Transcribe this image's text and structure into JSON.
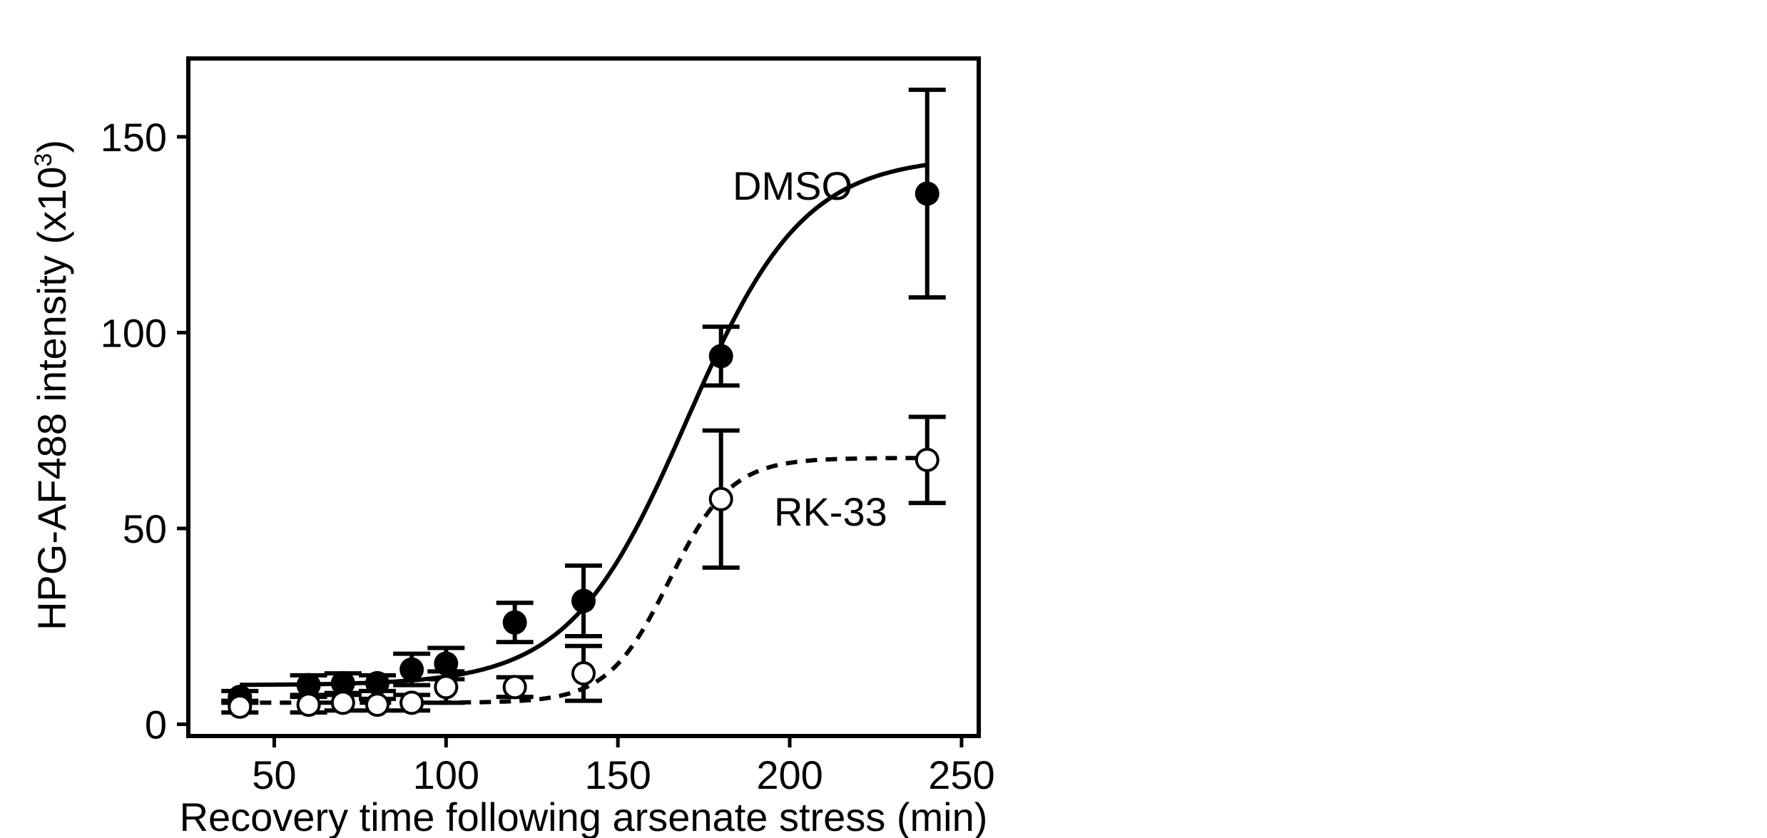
{
  "chart_data": {
    "type": "scatter",
    "title": "",
    "xlabel": "Recovery time following arsenate stress (min)",
    "ylabel_main": "HPG-AF488 intensity (x10",
    "ylabel_sup": "3",
    "ylabel_close": ")",
    "xlim": [
      25,
      255
    ],
    "ylim": [
      -3,
      170
    ],
    "xticks": [
      50,
      100,
      150,
      200,
      250
    ],
    "xtick_labels": [
      "50",
      "100",
      "150",
      "200",
      "250"
    ],
    "yticks": [
      0,
      50,
      100,
      150
    ],
    "ytick_labels": [
      "0",
      "50",
      "100",
      "150"
    ],
    "grid": false,
    "series": [
      {
        "name": "DMSO",
        "label": "DMSO",
        "marker": "filled-circle",
        "line_style": "solid",
        "x": [
          40,
          60,
          70,
          80,
          90,
          100,
          120,
          140,
          180,
          240
        ],
        "y": [
          7,
          10,
          10.5,
          10.5,
          14,
          15.5,
          26,
          31.5,
          94,
          135.5
        ],
        "err": [
          1.5,
          2.5,
          2.5,
          2,
          4,
          4,
          5,
          9,
          7.5,
          26.5
        ],
        "fit": {
          "base": 10,
          "top": 145,
          "x50": 170,
          "k": 17
        }
      },
      {
        "name": "RK-33",
        "label": "RK-33",
        "marker": "open-circle",
        "line_style": "dashed",
        "x": [
          40,
          60,
          70,
          80,
          90,
          100,
          120,
          140,
          180,
          240
        ],
        "y": [
          4.5,
          5,
          5.5,
          5,
          5.5,
          9.5,
          9.5,
          13,
          57.5,
          67.5
        ],
        "err": [
          1.5,
          2,
          2,
          1.5,
          2,
          4,
          2.5,
          7,
          17.5,
          11
        ],
        "fit": {
          "base": 5.5,
          "top": 68,
          "x50": 165,
          "k": 9
        }
      }
    ]
  }
}
